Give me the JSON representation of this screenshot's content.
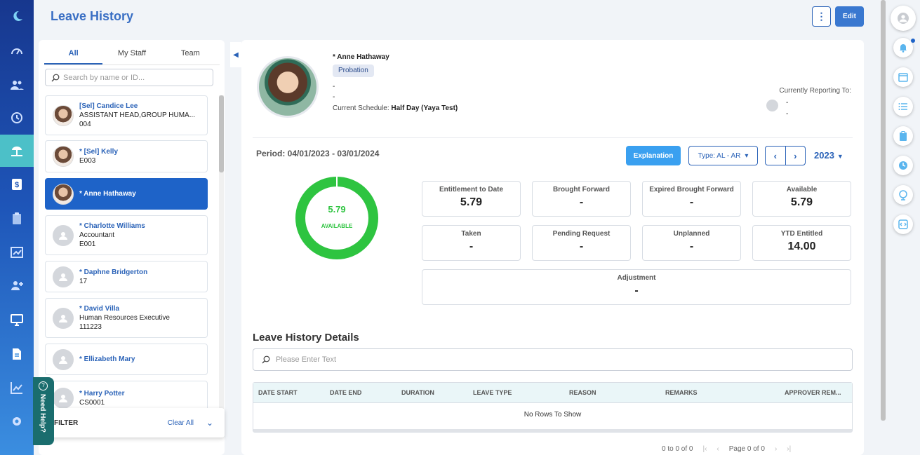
{
  "header": {
    "title": "Leave History",
    "more_label": "⋮",
    "edit_label": "Edit"
  },
  "sidebar": {
    "nav": [
      {
        "icon": "moon-logo-icon"
      },
      {
        "icon": "dashboard-icon"
      },
      {
        "icon": "people-icon"
      },
      {
        "icon": "history-icon"
      },
      {
        "icon": "beach-leave-icon",
        "active": true
      },
      {
        "icon": "dollar-icon"
      },
      {
        "icon": "clipboard-icon"
      },
      {
        "icon": "chart-icon"
      },
      {
        "icon": "add-user-icon"
      },
      {
        "icon": "monitor-icon"
      },
      {
        "icon": "document-icon"
      },
      {
        "icon": "trend-icon"
      },
      {
        "icon": "settings-icon"
      }
    ]
  },
  "staff": {
    "tabs": [
      "All",
      "My Staff",
      "Team"
    ],
    "search_placeholder": "Search by name or ID...",
    "items": [
      {
        "name": "[Sel] Candice Lee",
        "line1": "ASSISTANT HEAD,GROUP HUMA...",
        "line2": "004",
        "avatar": "photo"
      },
      {
        "name": "* [Sel] Kelly",
        "line1": "E003",
        "line2": "",
        "avatar": "photo"
      },
      {
        "name": "* Anne Hathaway",
        "line1": "",
        "line2": "",
        "avatar": "photo",
        "selected": true
      },
      {
        "name": "* Charlotte Williams",
        "line1": "Accountant",
        "line2": "E001",
        "avatar": "placeholder"
      },
      {
        "name": "* Daphne Bridgerton",
        "line1": "17",
        "line2": "",
        "avatar": "placeholder"
      },
      {
        "name": "* David Villa",
        "line1": "Human Resources Executive",
        "line2": "111223",
        "avatar": "placeholder"
      },
      {
        "name": "* Ellizabeth Mary",
        "line1": "",
        "line2": "",
        "avatar": "placeholder"
      },
      {
        "name": "* Harry Potter",
        "line1": "CS0001",
        "line2": "",
        "avatar": "placeholder"
      }
    ],
    "filter_label": "FILTER",
    "clear_all": "Clear All",
    "need_help": "Need Help?"
  },
  "employee": {
    "name": "* Anne Hathaway",
    "status": "Probation",
    "dash1": "-",
    "dash2": "-",
    "schedule_label": "Current Schedule:",
    "schedule_value": "Half Day (Yaya Test)",
    "reporting_label": "Currently Reporting To:",
    "reporting_d1": "-",
    "reporting_d2": "-"
  },
  "leave": {
    "period": "Period: 04/01/2023 - 03/01/2024",
    "explanation_label": "Explanation",
    "type_label": "Type: AL - AR",
    "year": "2023",
    "available_value": "5.79",
    "available_label": "AVAILABLE",
    "available_fraction": 1.0,
    "ring_color": "#2ec440",
    "stats": [
      {
        "title": "Entitlement to Date",
        "value": "5.79"
      },
      {
        "title": "Brought Forward",
        "value": "-"
      },
      {
        "title": "Expired Brought Forward",
        "value": "-"
      },
      {
        "title": "Available",
        "value": "5.79"
      },
      {
        "title": "Taken",
        "value": "-"
      },
      {
        "title": "Pending Request",
        "value": "-"
      },
      {
        "title": "Unplanned",
        "value": "-"
      },
      {
        "title": "YTD Entitled",
        "value": "14.00"
      },
      {
        "title": "Adjustment",
        "value": "-"
      }
    ]
  },
  "details": {
    "title": "Leave History Details",
    "search_placeholder": "Please Enter Text",
    "columns": [
      "DATE START",
      "DATE END",
      "DURATION",
      "LEAVE TYPE",
      "REASON",
      "REMARKS",
      "APPROVER REM..."
    ],
    "empty_text": "No Rows To Show",
    "pager": {
      "range": "0 to 0 of 0",
      "page_label": "Page",
      "page": "0",
      "of_label": "of",
      "total": "0"
    }
  },
  "rightrail": {
    "icons": [
      "user-avatar-icon",
      "bell-icon",
      "calendar-icon",
      "list-icon",
      "clipboard-icon",
      "clock-icon",
      "globe-icon",
      "code-icon"
    ]
  }
}
